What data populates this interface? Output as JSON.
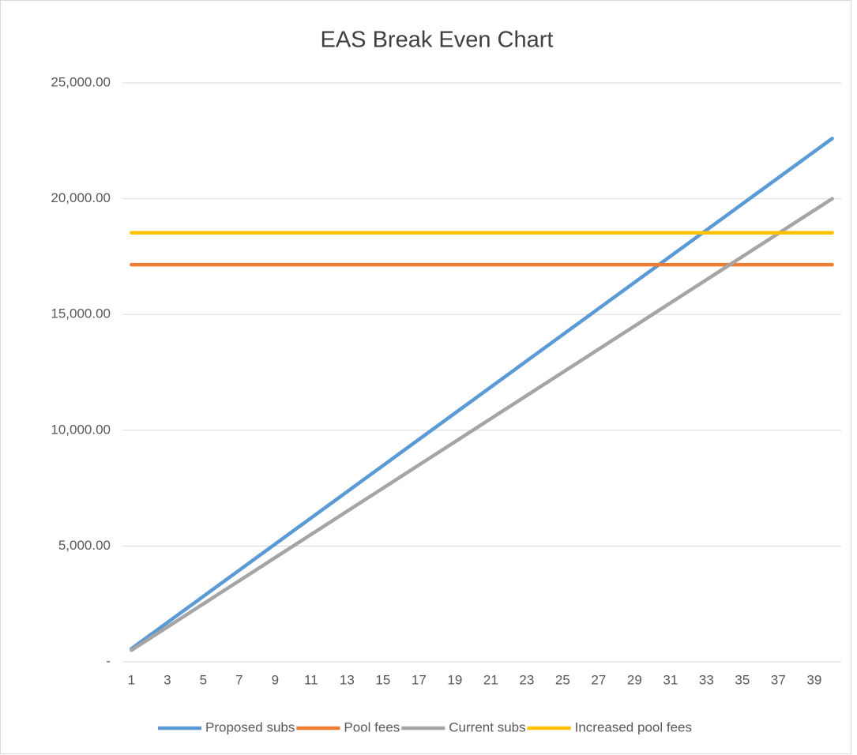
{
  "chart_data": {
    "type": "line",
    "title": "EAS Break Even Chart",
    "categories": [
      1,
      null,
      3,
      null,
      5,
      null,
      7,
      null,
      9,
      null,
      11,
      null,
      13,
      null,
      15,
      null,
      17,
      null,
      19,
      null,
      21,
      null,
      23,
      null,
      25,
      null,
      27,
      null,
      29,
      null,
      31,
      null,
      33,
      null,
      35,
      null,
      37,
      null,
      39,
      null
    ],
    "series": [
      {
        "name": "Proposed subs",
        "color": "#5b9bd5",
        "values": [
          565,
          1130,
          1695,
          2260,
          2825,
          3390,
          3955,
          4520,
          5085,
          5650,
          6215,
          6780,
          7345,
          7910,
          8475,
          9040,
          9605,
          10170,
          10735,
          11300,
          11865,
          12430,
          12995,
          13560,
          14125,
          14690,
          15255,
          15820,
          16385,
          16950,
          17515,
          18080,
          18645,
          19210,
          19775,
          20340,
          20905,
          21470,
          22035,
          22600
        ]
      },
      {
        "name": "Pool fees",
        "color": "#ed7d31",
        "values": [
          17150,
          17150,
          17150,
          17150,
          17150,
          17150,
          17150,
          17150,
          17150,
          17150,
          17150,
          17150,
          17150,
          17150,
          17150,
          17150,
          17150,
          17150,
          17150,
          17150,
          17150,
          17150,
          17150,
          17150,
          17150,
          17150,
          17150,
          17150,
          17150,
          17150,
          17150,
          17150,
          17150,
          17150,
          17150,
          17150,
          17150,
          17150,
          17150,
          17150
        ]
      },
      {
        "name": "Current subs",
        "color": "#a5a5a5",
        "values": [
          500,
          1000,
          1500,
          2000,
          2500,
          3000,
          3500,
          4000,
          4500,
          5000,
          5500,
          6000,
          6500,
          7000,
          7500,
          8000,
          8500,
          9000,
          9500,
          10000,
          10500,
          11000,
          11500,
          12000,
          12500,
          13000,
          13500,
          14000,
          14500,
          15000,
          15500,
          16000,
          16500,
          17000,
          17500,
          18000,
          18500,
          19000,
          19500,
          20000
        ]
      },
      {
        "name": "Increased pool fees",
        "color": "#ffc000",
        "values": [
          18530,
          18530,
          18530,
          18530,
          18530,
          18530,
          18530,
          18530,
          18530,
          18530,
          18530,
          18530,
          18530,
          18530,
          18530,
          18530,
          18530,
          18530,
          18530,
          18530,
          18530,
          18530,
          18530,
          18530,
          18530,
          18530,
          18530,
          18530,
          18530,
          18530,
          18530,
          18530,
          18530,
          18530,
          18530,
          18530,
          18530,
          18530,
          18530,
          18530
        ]
      }
    ],
    "ylim": [
      0,
      25000
    ],
    "yticks": [
      {
        "value": 0,
        "label": "-"
      },
      {
        "value": 5000,
        "label": "5,000.00"
      },
      {
        "value": 10000,
        "label": "10,000.00"
      },
      {
        "value": 15000,
        "label": "15,000.00"
      },
      {
        "value": 20000,
        "label": "20,000.00"
      },
      {
        "value": 25000,
        "label": "25,000.00"
      }
    ],
    "grid": true,
    "legend": "bottom"
  }
}
